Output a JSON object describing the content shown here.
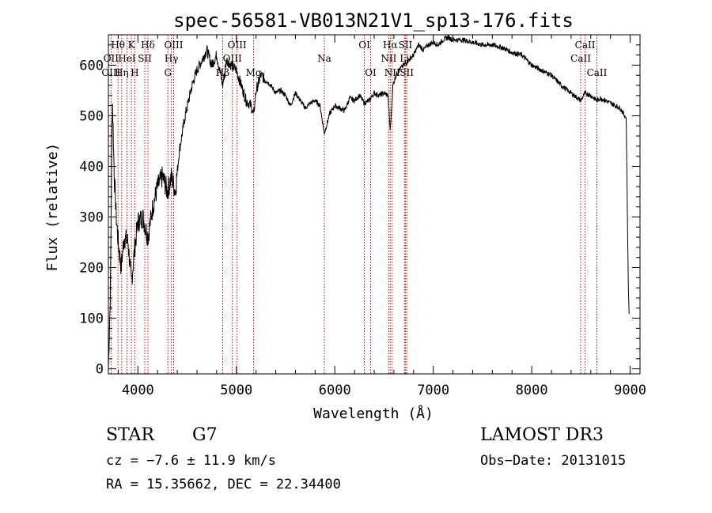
{
  "chart_data": {
    "type": "line",
    "title": "spec-56581-VB013N21V1_sp13-176.fits",
    "xlabel": "Wavelength (Å)",
    "ylabel": "Flux (relative)",
    "xlim": [
      3700,
      9100
    ],
    "ylim": [
      -10,
      660
    ],
    "x_ticks": [
      4000,
      5000,
      6000,
      7000,
      8000,
      9000
    ],
    "y_ticks": [
      0,
      100,
      200,
      300,
      400,
      500,
      600
    ],
    "spectrum": {
      "x": [
        3700,
        3720,
        3740,
        3760,
        3780,
        3800,
        3830,
        3860,
        3900,
        3934,
        3968,
        4000,
        4050,
        4102,
        4150,
        4200,
        4250,
        4300,
        4340,
        4380,
        4420,
        4480,
        4550,
        4600,
        4650,
        4700,
        4750,
        4800,
        4861,
        4900,
        4950,
        5000,
        5050,
        5100,
        5150,
        5175,
        5200,
        5250,
        5300,
        5350,
        5400,
        5450,
        5500,
        5550,
        5600,
        5650,
        5700,
        5750,
        5800,
        5850,
        5893,
        5950,
        6000,
        6050,
        6100,
        6150,
        6200,
        6250,
        6300,
        6350,
        6400,
        6450,
        6500,
        6540,
        6563,
        6590,
        6620,
        6650,
        6700,
        6750,
        6800,
        6850,
        6900,
        6950,
        7000,
        7050,
        7100,
        7150,
        7200,
        7300,
        7400,
        7500,
        7600,
        7700,
        7800,
        7900,
        8000,
        8100,
        8200,
        8300,
        8400,
        8498,
        8542,
        8600,
        8662,
        8700,
        8800,
        8900,
        8960,
        8980,
        8990
      ],
      "flux": [
        0,
        150,
        540,
        380,
        300,
        250,
        200,
        260,
        250,
        170,
        240,
        290,
        300,
        260,
        320,
        360,
        380,
        350,
        380,
        350,
        430,
        500,
        560,
        590,
        610,
        630,
        600,
        620,
        560,
        610,
        600,
        590,
        560,
        530,
        520,
        500,
        550,
        580,
        570,
        560,
        545,
        550,
        540,
        520,
        545,
        530,
        515,
        525,
        530,
        520,
        465,
        505,
        520,
        515,
        510,
        535,
        530,
        540,
        525,
        530,
        545,
        540,
        545,
        540,
        470,
        560,
        580,
        590,
        600,
        610,
        620,
        640,
        630,
        640,
        645,
        640,
        650,
        655,
        650,
        650,
        645,
        640,
        640,
        635,
        625,
        620,
        600,
        590,
        580,
        560,
        545,
        530,
        545,
        540,
        530,
        535,
        525,
        515,
        495,
        180,
        100
      ]
    },
    "lines": [
      {
        "name": "Hθ",
        "x": 3798,
        "row": 1
      },
      {
        "name": "OII",
        "x": 3727,
        "row": 2
      },
      {
        "name": "OIII",
        "x": 3727,
        "row": 3
      },
      {
        "name": "Hη",
        "x": 3835,
        "row": 3
      },
      {
        "name": "HeI",
        "x": 3889,
        "row": 2
      },
      {
        "name": "K",
        "x": 3934,
        "row": 1
      },
      {
        "name": "H",
        "x": 3968,
        "row": 3
      },
      {
        "name": "SII",
        "x": 4070,
        "row": 2
      },
      {
        "name": "Hδ",
        "x": 4102,
        "row": 1
      },
      {
        "name": "OIII",
        "x": 4363,
        "row": 1
      },
      {
        "name": "Hγ",
        "x": 4340,
        "row": 2
      },
      {
        "name": "G",
        "x": 4305,
        "row": 3
      },
      {
        "name": "OIII",
        "x": 5007,
        "row": 1
      },
      {
        "name": "OIII",
        "x": 4959,
        "row": 2
      },
      {
        "name": "Hβ",
        "x": 4861,
        "row": 3
      },
      {
        "name": "Mg",
        "x": 5175,
        "row": 3
      },
      {
        "name": "Na",
        "x": 5893,
        "row": 2
      },
      {
        "name": "OI",
        "x": 6300,
        "row": 1
      },
      {
        "name": "OI",
        "x": 6364,
        "row": 3
      },
      {
        "name": "Hα",
        "x": 6563,
        "row": 1
      },
      {
        "name": "NII",
        "x": 6548,
        "row": 2
      },
      {
        "name": "NII",
        "x": 6583,
        "row": 3
      },
      {
        "name": "SII",
        "x": 6717,
        "row": 1
      },
      {
        "name": "Li",
        "x": 6708,
        "row": 2
      },
      {
        "name": "SII",
        "x": 6731,
        "row": 3
      },
      {
        "name": "CaII",
        "x": 8542,
        "row": 1
      },
      {
        "name": "CaII",
        "x": 8498,
        "row": 2
      },
      {
        "name": "CaII",
        "x": 8662,
        "row": 3
      }
    ]
  },
  "info": {
    "class": "STAR",
    "subclass": "G7",
    "survey": "LAMOST DR3",
    "cz": "cz = −7.6 ± 11.9 km/s",
    "obs_date": "Obs−Date: 20131015",
    "radec": "RA =  15.35662, DEC =  22.34400"
  },
  "colors": {
    "line_marker": "#cc0000",
    "spectrum": "#000000",
    "axes": "#000000"
  }
}
